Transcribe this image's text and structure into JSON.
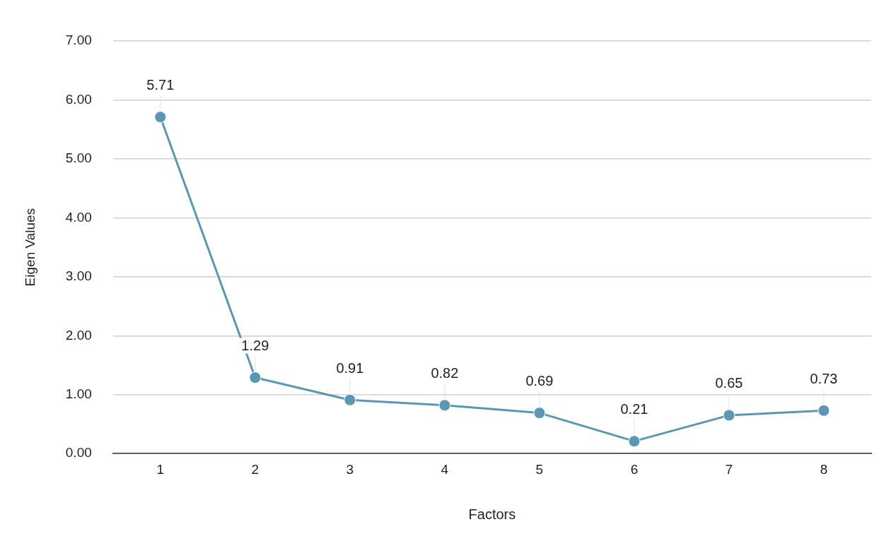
{
  "chart_data": {
    "type": "line",
    "xlabel": "Factors",
    "ylabel": "Eigen Values",
    "categories": [
      "1",
      "2",
      "3",
      "4",
      "5",
      "6",
      "7",
      "8"
    ],
    "series": [
      {
        "color": "#5b97b5",
        "values": [
          5.71,
          1.29,
          0.91,
          0.82,
          0.69,
          0.21,
          0.65,
          0.73
        ]
      }
    ],
    "ylim": [
      0,
      7
    ],
    "yticks": [
      {
        "value": 0,
        "label": "0.00"
      },
      {
        "value": 1,
        "label": "1.00"
      },
      {
        "value": 2,
        "label": "2.00"
      },
      {
        "value": 3,
        "label": "3.00"
      },
      {
        "value": 4,
        "label": "4.00"
      },
      {
        "value": 5,
        "label": "5.00"
      },
      {
        "value": 6,
        "label": "6.00"
      },
      {
        "value": 7,
        "label": "7.00"
      }
    ],
    "grid": "y",
    "legend": false,
    "marker": "circle",
    "line_style": "solid",
    "data_labels": true
  }
}
